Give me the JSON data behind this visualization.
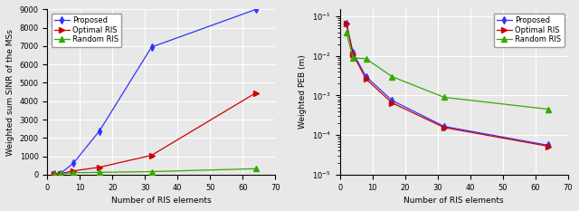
{
  "x": [
    2,
    4,
    8,
    16,
    32,
    64
  ],
  "sinr_proposed": [
    20,
    60,
    620,
    2380,
    6950,
    9000
  ],
  "sinr_optimal": [
    15,
    50,
    200,
    400,
    1050,
    4450
  ],
  "sinr_random": [
    10,
    30,
    100,
    120,
    160,
    320
  ],
  "peb_proposed": [
    0.065,
    0.012,
    0.003,
    0.00075,
    0.000165,
    5.5e-05
  ],
  "peb_optimal": [
    0.065,
    0.011,
    0.0026,
    0.00065,
    0.000155,
    5.2e-05
  ],
  "peb_random": [
    0.038,
    0.009,
    0.0085,
    0.003,
    0.0009,
    0.00045
  ],
  "color_proposed": "#3333ff",
  "color_optimal": "#cc0000",
  "color_random": "#33aa00",
  "xlabel": "Number of RIS elements",
  "ylabel_left": "Weighted sum SINR of the MSs",
  "ylabel_right": "Weighted PEB (m)",
  "legend_proposed": "Proposed",
  "legend_optimal": "Optimal RIS",
  "legend_random": "Random RIS",
  "xlim": [
    0,
    68
  ],
  "xticks": [
    0,
    10,
    20,
    30,
    40,
    50,
    60,
    70
  ],
  "sinr_ylim": [
    0,
    9000
  ],
  "sinr_yticks": [
    0,
    1000,
    2000,
    3000,
    4000,
    5000,
    6000,
    7000,
    8000,
    9000
  ],
  "peb_ylim": [
    1e-05,
    0.15
  ],
  "fig_width": 6.4,
  "fig_height": 2.33,
  "dpi": 100,
  "bg_color": "#e8e8e8",
  "grid_color": "#ffffff",
  "fontsize": 6.5,
  "tick_fontsize": 6.0,
  "legend_fontsize": 6.0,
  "markersize": 4,
  "linewidth": 0.9
}
